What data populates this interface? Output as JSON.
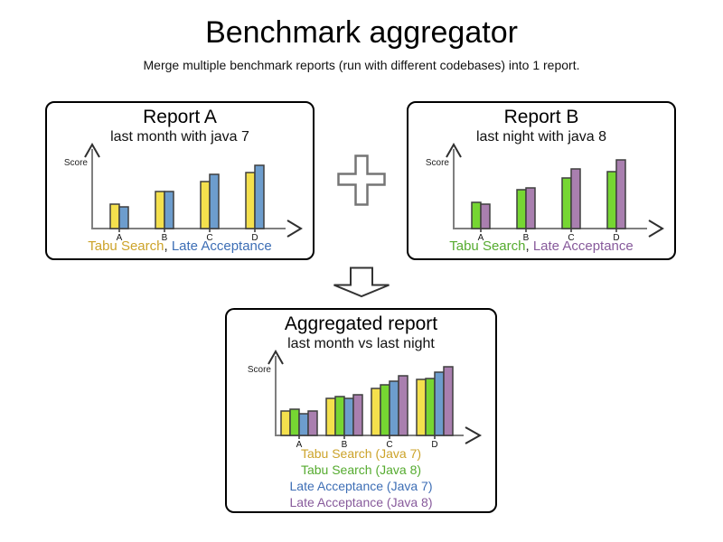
{
  "page": {
    "title": "Benchmark aggregator",
    "subtitle": "Merge multiple benchmark reports (run with different codebases) into 1 report."
  },
  "icons": {
    "plus_icon": "+",
    "arrow_down_icon": "↓"
  },
  "colors": {
    "axis": "#7f7f7f",
    "arrowhead": "#2f2f2f",
    "bar_stroke": "#3f3f3f",
    "tick": "#333333",
    "box_border": "#000000",
    "tabu_java7_bar": "#f4e04d",
    "tabu_java8_bar": "#76d632",
    "late_java7_bar": "#6d9dcd",
    "late_java8_bar": "#a97faf",
    "tabu_java7_text": "#cca32a",
    "tabu_java8_text": "#55ab2f",
    "late_java7_text": "#3d6eb5",
    "late_java8_text": "#875a9b"
  },
  "chart_data": [
    {
      "id": "report-a",
      "type": "bar",
      "title": "Report A",
      "subtitle": "last month with java 7",
      "xlabel": "",
      "ylabel": "Score",
      "categories": [
        "A",
        "B",
        "C",
        "D"
      ],
      "series": [
        {
          "name": "Tabu Search",
          "color": "#f4e04d",
          "values": [
            27,
            41,
            52,
            62
          ]
        },
        {
          "name": "Late Acceptance",
          "color": "#6d9dcd",
          "values": [
            24,
            41,
            60,
            70
          ]
        }
      ],
      "ylim": [
        0,
        90
      ],
      "grid": false,
      "legend_position": "bottom",
      "legend_layout": "inline",
      "legend_separator": ", ",
      "legend_text_colors": [
        "#cca32a",
        "#3d6eb5"
      ]
    },
    {
      "id": "report-b",
      "type": "bar",
      "title": "Report B",
      "subtitle": "last night with java 8",
      "xlabel": "",
      "ylabel": "Score",
      "categories": [
        "A",
        "B",
        "C",
        "D"
      ],
      "series": [
        {
          "name": "Tabu Search",
          "color": "#76d632",
          "values": [
            29,
            43,
            56,
            63
          ]
        },
        {
          "name": "Late Acceptance",
          "color": "#a97faf",
          "values": [
            27,
            45,
            66,
            76
          ]
        }
      ],
      "ylim": [
        0,
        90
      ],
      "grid": false,
      "legend_position": "bottom",
      "legend_layout": "inline",
      "legend_separator": ", ",
      "legend_text_colors": [
        "#55ab2f",
        "#875a9b"
      ]
    },
    {
      "id": "aggregated-report",
      "type": "bar",
      "title": "Aggregated report",
      "subtitle": "last month vs last night",
      "xlabel": "",
      "ylabel": "Score",
      "categories": [
        "A",
        "B",
        "C",
        "D"
      ],
      "series": [
        {
          "name": "Tabu Search (Java 7)",
          "color": "#f4e04d",
          "values": [
            27,
            41,
            52,
            62
          ]
        },
        {
          "name": "Tabu Search (Java 8)",
          "color": "#76d632",
          "values": [
            29,
            43,
            56,
            63
          ]
        },
        {
          "name": "Late Acceptance (Java 7)",
          "color": "#6d9dcd",
          "values": [
            24,
            41,
            60,
            70
          ]
        },
        {
          "name": "Late Acceptance (Java 8)",
          "color": "#a97faf",
          "values": [
            27,
            45,
            66,
            76
          ]
        }
      ],
      "ylim": [
        0,
        90
      ],
      "grid": false,
      "legend_position": "bottom",
      "legend_layout": "stacked",
      "legend_separator": "",
      "legend_text_colors": [
        "#cca32a",
        "#55ab2f",
        "#3d6eb5",
        "#875a9b"
      ]
    }
  ]
}
